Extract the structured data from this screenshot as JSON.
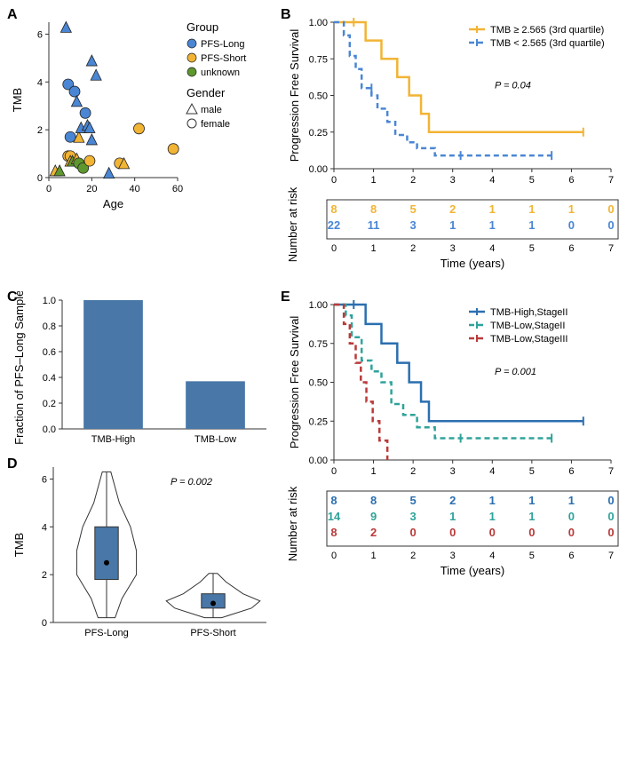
{
  "panelA": {
    "type": "scatter",
    "xlabel": "Age",
    "ylabel": "TMB",
    "xlim": [
      0,
      60
    ],
    "ylim": [
      0,
      6.5
    ],
    "xticks": [
      0,
      20,
      40,
      60
    ],
    "yticks": [
      0,
      2,
      4,
      6
    ],
    "legend_group_title": "Group",
    "legend_gender_title": "Gender",
    "groups": [
      {
        "label": "PFS-Long",
        "color": "#4a86d4"
      },
      {
        "label": "PFS-Short",
        "color": "#f2b434"
      },
      {
        "label": "unknown",
        "color": "#5f972f"
      }
    ],
    "genders": [
      {
        "label": "male",
        "shape": "triangle"
      },
      {
        "label": "female",
        "shape": "circle"
      }
    ],
    "points": [
      {
        "x": 3,
        "y": 0.3,
        "group": 1,
        "shape": "triangle"
      },
      {
        "x": 5,
        "y": 0.3,
        "group": 2,
        "shape": "triangle"
      },
      {
        "x": 8,
        "y": 6.3,
        "group": 0,
        "shape": "triangle"
      },
      {
        "x": 9,
        "y": 3.9,
        "group": 0,
        "shape": "circle"
      },
      {
        "x": 9,
        "y": 0.9,
        "group": 1,
        "shape": "circle"
      },
      {
        "x": 10,
        "y": 0.9,
        "group": 1,
        "shape": "circle"
      },
      {
        "x": 10,
        "y": 0.7,
        "group": 1,
        "shape": "triangle"
      },
      {
        "x": 10,
        "y": 1.7,
        "group": 0,
        "shape": "circle"
      },
      {
        "x": 11,
        "y": 0.7,
        "group": 2,
        "shape": "triangle"
      },
      {
        "x": 12,
        "y": 3.6,
        "group": 0,
        "shape": "circle"
      },
      {
        "x": 13,
        "y": 3.2,
        "group": 0,
        "shape": "triangle"
      },
      {
        "x": 13,
        "y": 0.8,
        "group": 1,
        "shape": "triangle"
      },
      {
        "x": 14,
        "y": 1.7,
        "group": 1,
        "shape": "triangle"
      },
      {
        "x": 14,
        "y": 0.6,
        "group": 2,
        "shape": "circle"
      },
      {
        "x": 15,
        "y": 2.1,
        "group": 0,
        "shape": "triangle"
      },
      {
        "x": 16,
        "y": 0.4,
        "group": 2,
        "shape": "circle"
      },
      {
        "x": 17,
        "y": 2.7,
        "group": 0,
        "shape": "circle"
      },
      {
        "x": 18,
        "y": 2.2,
        "group": 0,
        "shape": "triangle"
      },
      {
        "x": 19,
        "y": 2.1,
        "group": 0,
        "shape": "triangle"
      },
      {
        "x": 19,
        "y": 0.7,
        "group": 1,
        "shape": "circle"
      },
      {
        "x": 20,
        "y": 1.6,
        "group": 0,
        "shape": "triangle"
      },
      {
        "x": 20,
        "y": 4.9,
        "group": 0,
        "shape": "triangle"
      },
      {
        "x": 22,
        "y": 4.3,
        "group": 0,
        "shape": "triangle"
      },
      {
        "x": 28,
        "y": 0.2,
        "group": 0,
        "shape": "triangle"
      },
      {
        "x": 33,
        "y": 0.6,
        "group": 1,
        "shape": "circle"
      },
      {
        "x": 35,
        "y": 0.6,
        "group": 1,
        "shape": "triangle"
      },
      {
        "x": 42,
        "y": 2.05,
        "group": 1,
        "shape": "circle"
      },
      {
        "x": 58,
        "y": 1.2,
        "group": 1,
        "shape": "circle"
      }
    ],
    "axis_color": "#333333",
    "marker_size": 6
  },
  "panelB": {
    "type": "kaplan-meier",
    "ylabel": "Progression Free Survival",
    "xlabel": "Time (years)",
    "risk_label": "Number at risk",
    "xlim": [
      0,
      7
    ],
    "ylim": [
      0,
      1.0
    ],
    "xticks": [
      0,
      1,
      2,
      3,
      4,
      5,
      6,
      7
    ],
    "yticks": [
      0.0,
      0.25,
      0.5,
      0.75,
      1.0
    ],
    "pvalue": "P = 0.04",
    "series": [
      {
        "label": "TMB ≥ 2.565 (3rd quartile)",
        "color": "#f2b434",
        "dash": "solid",
        "steps": [
          [
            0,
            1.0
          ],
          [
            0.8,
            1.0
          ],
          [
            0.8,
            0.875
          ],
          [
            1.2,
            0.875
          ],
          [
            1.2,
            0.75
          ],
          [
            1.6,
            0.75
          ],
          [
            1.6,
            0.625
          ],
          [
            1.9,
            0.625
          ],
          [
            1.9,
            0.5
          ],
          [
            2.2,
            0.5
          ],
          [
            2.2,
            0.375
          ],
          [
            2.4,
            0.375
          ],
          [
            2.4,
            0.25
          ],
          [
            6.3,
            0.25
          ]
        ],
        "censors": [
          [
            0.5,
            1.0
          ],
          [
            6.3,
            0.25
          ]
        ],
        "risk": [
          8,
          8,
          5,
          2,
          1,
          1,
          1,
          0
        ]
      },
      {
        "label": "TMB < 2.565 (3rd quartile)",
        "color": "#4a86d4",
        "dash": "dashed",
        "steps": [
          [
            0,
            1.0
          ],
          [
            0.25,
            1.0
          ],
          [
            0.25,
            0.91
          ],
          [
            0.4,
            0.91
          ],
          [
            0.4,
            0.77
          ],
          [
            0.55,
            0.77
          ],
          [
            0.55,
            0.68
          ],
          [
            0.7,
            0.68
          ],
          [
            0.7,
            0.55
          ],
          [
            0.95,
            0.55
          ],
          [
            0.95,
            0.5
          ],
          [
            1.1,
            0.5
          ],
          [
            1.1,
            0.41
          ],
          [
            1.35,
            0.41
          ],
          [
            1.35,
            0.32
          ],
          [
            1.55,
            0.32
          ],
          [
            1.55,
            0.23
          ],
          [
            1.85,
            0.23
          ],
          [
            1.85,
            0.18
          ],
          [
            2.1,
            0.18
          ],
          [
            2.1,
            0.14
          ],
          [
            2.55,
            0.14
          ],
          [
            2.55,
            0.09
          ],
          [
            5.5,
            0.09
          ]
        ],
        "censors": [
          [
            0.95,
            0.55
          ],
          [
            3.2,
            0.09
          ],
          [
            5.5,
            0.09
          ]
        ],
        "risk": [
          22,
          11,
          3,
          1,
          1,
          1,
          0,
          0
        ]
      }
    ]
  },
  "panelC": {
    "type": "bar",
    "ylabel": "Fraction of PFS–Long Samples",
    "categories": [
      "TMB-High",
      "TMB-Low"
    ],
    "values": [
      1.0,
      0.37
    ],
    "ylim": [
      0,
      1.0
    ],
    "yticks": [
      0.0,
      0.2,
      0.4,
      0.6,
      0.8,
      1.0
    ],
    "bar_color": "#4877a8",
    "bar_width": 0.58
  },
  "panelD": {
    "type": "violin-box",
    "ylabel": "TMB",
    "categories": [
      "PFS-Long",
      "PFS-Short"
    ],
    "ylim": [
      0,
      6.5
    ],
    "yticks": [
      0,
      2,
      4,
      6
    ],
    "pvalue": "P = 0.002",
    "box_color": "#4877a8",
    "violins": [
      {
        "median": 2.5,
        "q1": 1.8,
        "q3": 4.0,
        "whisker_low": 0.2,
        "whisker_high": 6.3,
        "width_profile": [
          [
            0.2,
            0.1
          ],
          [
            1.0,
            0.18
          ],
          [
            2.0,
            0.35
          ],
          [
            3.0,
            0.35
          ],
          [
            4.0,
            0.28
          ],
          [
            5.0,
            0.15
          ],
          [
            6.3,
            0.05
          ]
        ]
      },
      {
        "median": 0.8,
        "q1": 0.6,
        "q3": 1.2,
        "whisker_low": 0.2,
        "whisker_high": 2.05,
        "width_profile": [
          [
            0.2,
            0.1
          ],
          [
            0.6,
            0.45
          ],
          [
            0.9,
            0.55
          ],
          [
            1.2,
            0.35
          ],
          [
            1.7,
            0.15
          ],
          [
            2.05,
            0.05
          ]
        ]
      }
    ]
  },
  "panelE": {
    "type": "kaplan-meier",
    "ylabel": "Progression Free Survival",
    "xlabel": "Time (years)",
    "risk_label": "Number at risk",
    "xlim": [
      0,
      7
    ],
    "ylim": [
      0,
      1.0
    ],
    "xticks": [
      0,
      1,
      2,
      3,
      4,
      5,
      6,
      7
    ],
    "yticks": [
      0.0,
      0.25,
      0.5,
      0.75,
      1.0
    ],
    "pvalue": "P = 0.001",
    "series": [
      {
        "label": "TMB-High,StageII",
        "color": "#2b6fb0",
        "dash": "solid",
        "steps": [
          [
            0,
            1.0
          ],
          [
            0.8,
            1.0
          ],
          [
            0.8,
            0.875
          ],
          [
            1.2,
            0.875
          ],
          [
            1.2,
            0.75
          ],
          [
            1.6,
            0.75
          ],
          [
            1.6,
            0.625
          ],
          [
            1.9,
            0.625
          ],
          [
            1.9,
            0.5
          ],
          [
            2.2,
            0.5
          ],
          [
            2.2,
            0.375
          ],
          [
            2.4,
            0.375
          ],
          [
            2.4,
            0.25
          ],
          [
            6.3,
            0.25
          ]
        ],
        "censors": [
          [
            0.5,
            1.0
          ],
          [
            6.3,
            0.25
          ]
        ],
        "risk": [
          8,
          8,
          5,
          2,
          1,
          1,
          1,
          0
        ]
      },
      {
        "label": "TMB-Low,StageII",
        "color": "#2fa39a",
        "dash": "dashed",
        "steps": [
          [
            0,
            1.0
          ],
          [
            0.3,
            1.0
          ],
          [
            0.3,
            0.93
          ],
          [
            0.45,
            0.93
          ],
          [
            0.45,
            0.79
          ],
          [
            0.7,
            0.79
          ],
          [
            0.7,
            0.64
          ],
          [
            0.95,
            0.64
          ],
          [
            0.95,
            0.57
          ],
          [
            1.2,
            0.57
          ],
          [
            1.2,
            0.5
          ],
          [
            1.45,
            0.5
          ],
          [
            1.45,
            0.36
          ],
          [
            1.75,
            0.36
          ],
          [
            1.75,
            0.29
          ],
          [
            2.1,
            0.29
          ],
          [
            2.1,
            0.21
          ],
          [
            2.55,
            0.21
          ],
          [
            2.55,
            0.14
          ],
          [
            5.5,
            0.14
          ]
        ],
        "censors": [
          [
            3.2,
            0.14
          ],
          [
            5.5,
            0.14
          ]
        ],
        "risk": [
          14,
          9,
          3,
          1,
          1,
          1,
          0,
          0
        ]
      },
      {
        "label": "TMB-Low,StageIII",
        "color": "#b93a3a",
        "dash": "dashed",
        "steps": [
          [
            0,
            1.0
          ],
          [
            0.25,
            1.0
          ],
          [
            0.25,
            0.875
          ],
          [
            0.4,
            0.875
          ],
          [
            0.4,
            0.75
          ],
          [
            0.55,
            0.75
          ],
          [
            0.55,
            0.625
          ],
          [
            0.68,
            0.625
          ],
          [
            0.68,
            0.5
          ],
          [
            0.82,
            0.5
          ],
          [
            0.82,
            0.375
          ],
          [
            0.98,
            0.375
          ],
          [
            0.98,
            0.25
          ],
          [
            1.15,
            0.25
          ],
          [
            1.15,
            0.125
          ],
          [
            1.35,
            0.125
          ],
          [
            1.35,
            0.0
          ]
        ],
        "censors": [],
        "risk": [
          8,
          2,
          0,
          0,
          0,
          0,
          0,
          0
        ]
      }
    ]
  }
}
